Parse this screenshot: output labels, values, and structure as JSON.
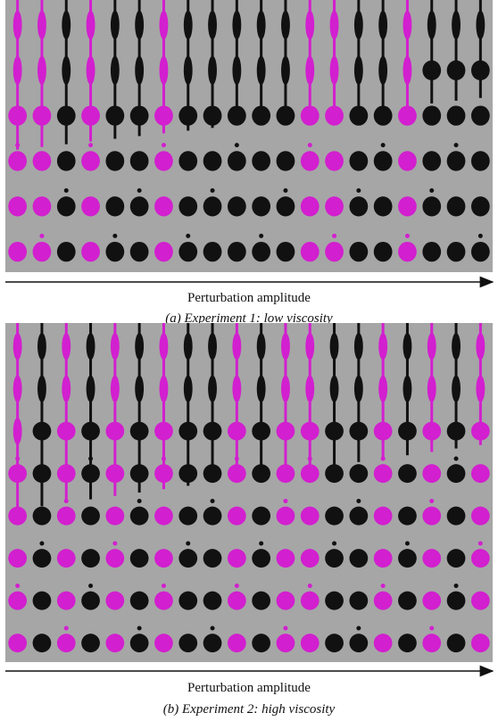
{
  "panels": [
    {
      "axis_label": "Perturbation amplitude",
      "caption": "(a) Experiment 1: low viscosity"
    },
    {
      "axis_label": "Perturbation amplitude",
      "caption": "(b) Experiment 2: high viscosity"
    }
  ]
}
